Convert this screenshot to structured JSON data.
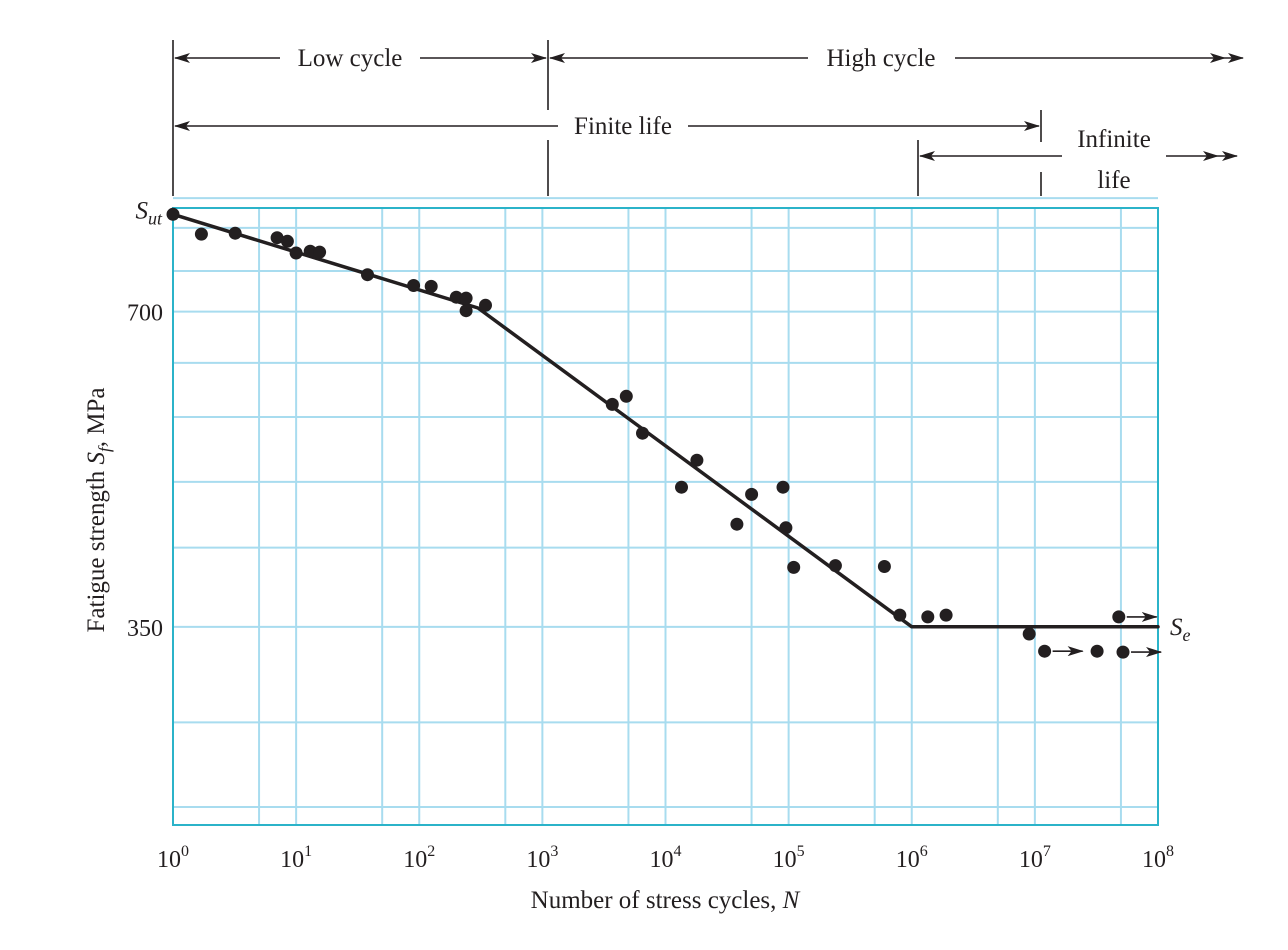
{
  "chart_data": {
    "type": "scatter",
    "title": "",
    "xlabel": "Number of stress cycles, N",
    "ylabel": "Fatigue strength S_f, MPa",
    "x_scale": "log",
    "xlim": [
      1,
      100000000
    ],
    "ylim": [
      130,
      815
    ],
    "x_tick_exponents": [
      "0",
      "1",
      "2",
      "3",
      "4",
      "5",
      "6",
      "7",
      "8"
    ],
    "x_tick_base": "10",
    "y_ticks": [
      {
        "value": 700,
        "label": "700"
      },
      {
        "value": 350,
        "label": "350"
      }
    ],
    "y_gridlines": [
      150,
      244,
      350,
      438,
      511,
      583,
      643,
      700,
      745,
      793,
      826
    ],
    "grid": true,
    "sut_label": {
      "main": "S",
      "sub": "ut",
      "y": 808
    },
    "se_label": {
      "main": "S",
      "sub": "e",
      "y": 350
    },
    "ylabel_parts": {
      "before": "Fatigue strength ",
      "main": "S",
      "sub": "f",
      "after": ", MPa"
    },
    "xlabel_parts": {
      "before": "Number of stress cycles, ",
      "main": "N"
    },
    "fit_line": [
      {
        "x": 1,
        "y": 808
      },
      {
        "x": 300,
        "y": 704
      },
      {
        "x": 1000000,
        "y": 350
      },
      {
        "x": 100000000,
        "y": 350
      }
    ],
    "series": [
      {
        "values": [
          {
            "x": 1,
            "y": 808
          },
          {
            "x": 1.7,
            "y": 786
          },
          {
            "x": 3.2,
            "y": 787
          },
          {
            "x": 7,
            "y": 782
          },
          {
            "x": 8.5,
            "y": 778
          },
          {
            "x": 10,
            "y": 765
          },
          {
            "x": 13,
            "y": 767
          },
          {
            "x": 15.5,
            "y": 766
          },
          {
            "x": 38,
            "y": 741
          },
          {
            "x": 90,
            "y": 729
          },
          {
            "x": 125,
            "y": 728
          },
          {
            "x": 200,
            "y": 716
          },
          {
            "x": 240,
            "y": 715
          },
          {
            "x": 240,
            "y": 701
          },
          {
            "x": 345,
            "y": 707
          },
          {
            "x": 3700,
            "y": 597
          },
          {
            "x": 4800,
            "y": 606
          },
          {
            "x": 6500,
            "y": 565
          },
          {
            "x": 13500,
            "y": 505
          },
          {
            "x": 18000,
            "y": 535
          },
          {
            "x": 38000,
            "y": 464
          },
          {
            "x": 50000,
            "y": 497
          },
          {
            "x": 90000,
            "y": 505
          },
          {
            "x": 95000,
            "y": 460
          },
          {
            "x": 110000,
            "y": 416
          },
          {
            "x": 240000,
            "y": 418
          },
          {
            "x": 600000,
            "y": 417
          },
          {
            "x": 800000,
            "y": 363
          },
          {
            "x": 1350000,
            "y": 361
          },
          {
            "x": 1900000,
            "y": 363
          },
          {
            "x": 9000000,
            "y": 342
          },
          {
            "x": 12000000,
            "y": 323
          },
          {
            "x": 32000000,
            "y": 323
          },
          {
            "x": 48000000,
            "y": 361
          },
          {
            "x": 52000000,
            "y": 322
          }
        ]
      }
    ],
    "runouts": [
      {
        "x": 12000000,
        "y": 323
      },
      {
        "x": 48000000,
        "y": 361
      },
      {
        "x": 52000000,
        "y": 322
      }
    ]
  },
  "annotations": {
    "low_cycle": "Low cycle",
    "high_cycle": "High cycle",
    "finite_life": "Finite life",
    "infinite_life_1": "Infinite",
    "infinite_life_2": "life"
  }
}
